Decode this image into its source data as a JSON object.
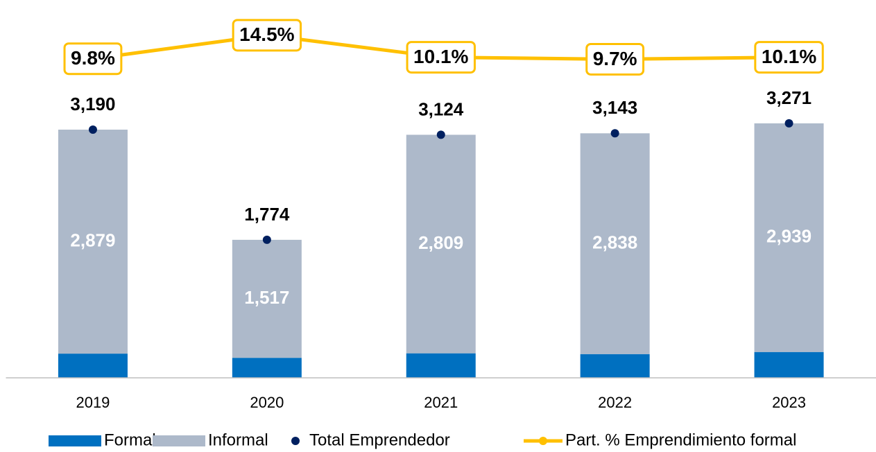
{
  "chart_data": {
    "type": "bar",
    "categories": [
      "2019",
      "2020",
      "2021",
      "2022",
      "2023"
    ],
    "ylim": [
      0,
      4500
    ],
    "y2lim": [
      -54,
      16
    ],
    "series": [
      {
        "name": "Formal",
        "type": "bar",
        "color": "#0070c0",
        "values": [
          311,
          257,
          315,
          305,
          332
        ]
      },
      {
        "name": "Informal",
        "type": "bar",
        "color": "#adb9ca",
        "values": [
          2879,
          1517,
          2809,
          2838,
          2939
        ],
        "value_labels": [
          "2,879",
          "1,517",
          "2,809",
          "2,838",
          "2,939"
        ]
      },
      {
        "name": "Total Emprendedor",
        "type": "scatter",
        "color": "#002060",
        "values": [
          3190,
          1774,
          3124,
          3143,
          3271
        ],
        "value_labels": [
          "3,190",
          "1,774",
          "3,124",
          "3,143",
          "3,271"
        ]
      },
      {
        "name": "Part. % Emprendimiento formal",
        "type": "line",
        "axis": "y2",
        "color": "#ffc000",
        "values": [
          9.8,
          14.5,
          10.1,
          9.7,
          10.1
        ],
        "value_labels": [
          "9.8%",
          "14.5%",
          "10.1%",
          "9.7%",
          "10.1%"
        ]
      }
    ]
  }
}
